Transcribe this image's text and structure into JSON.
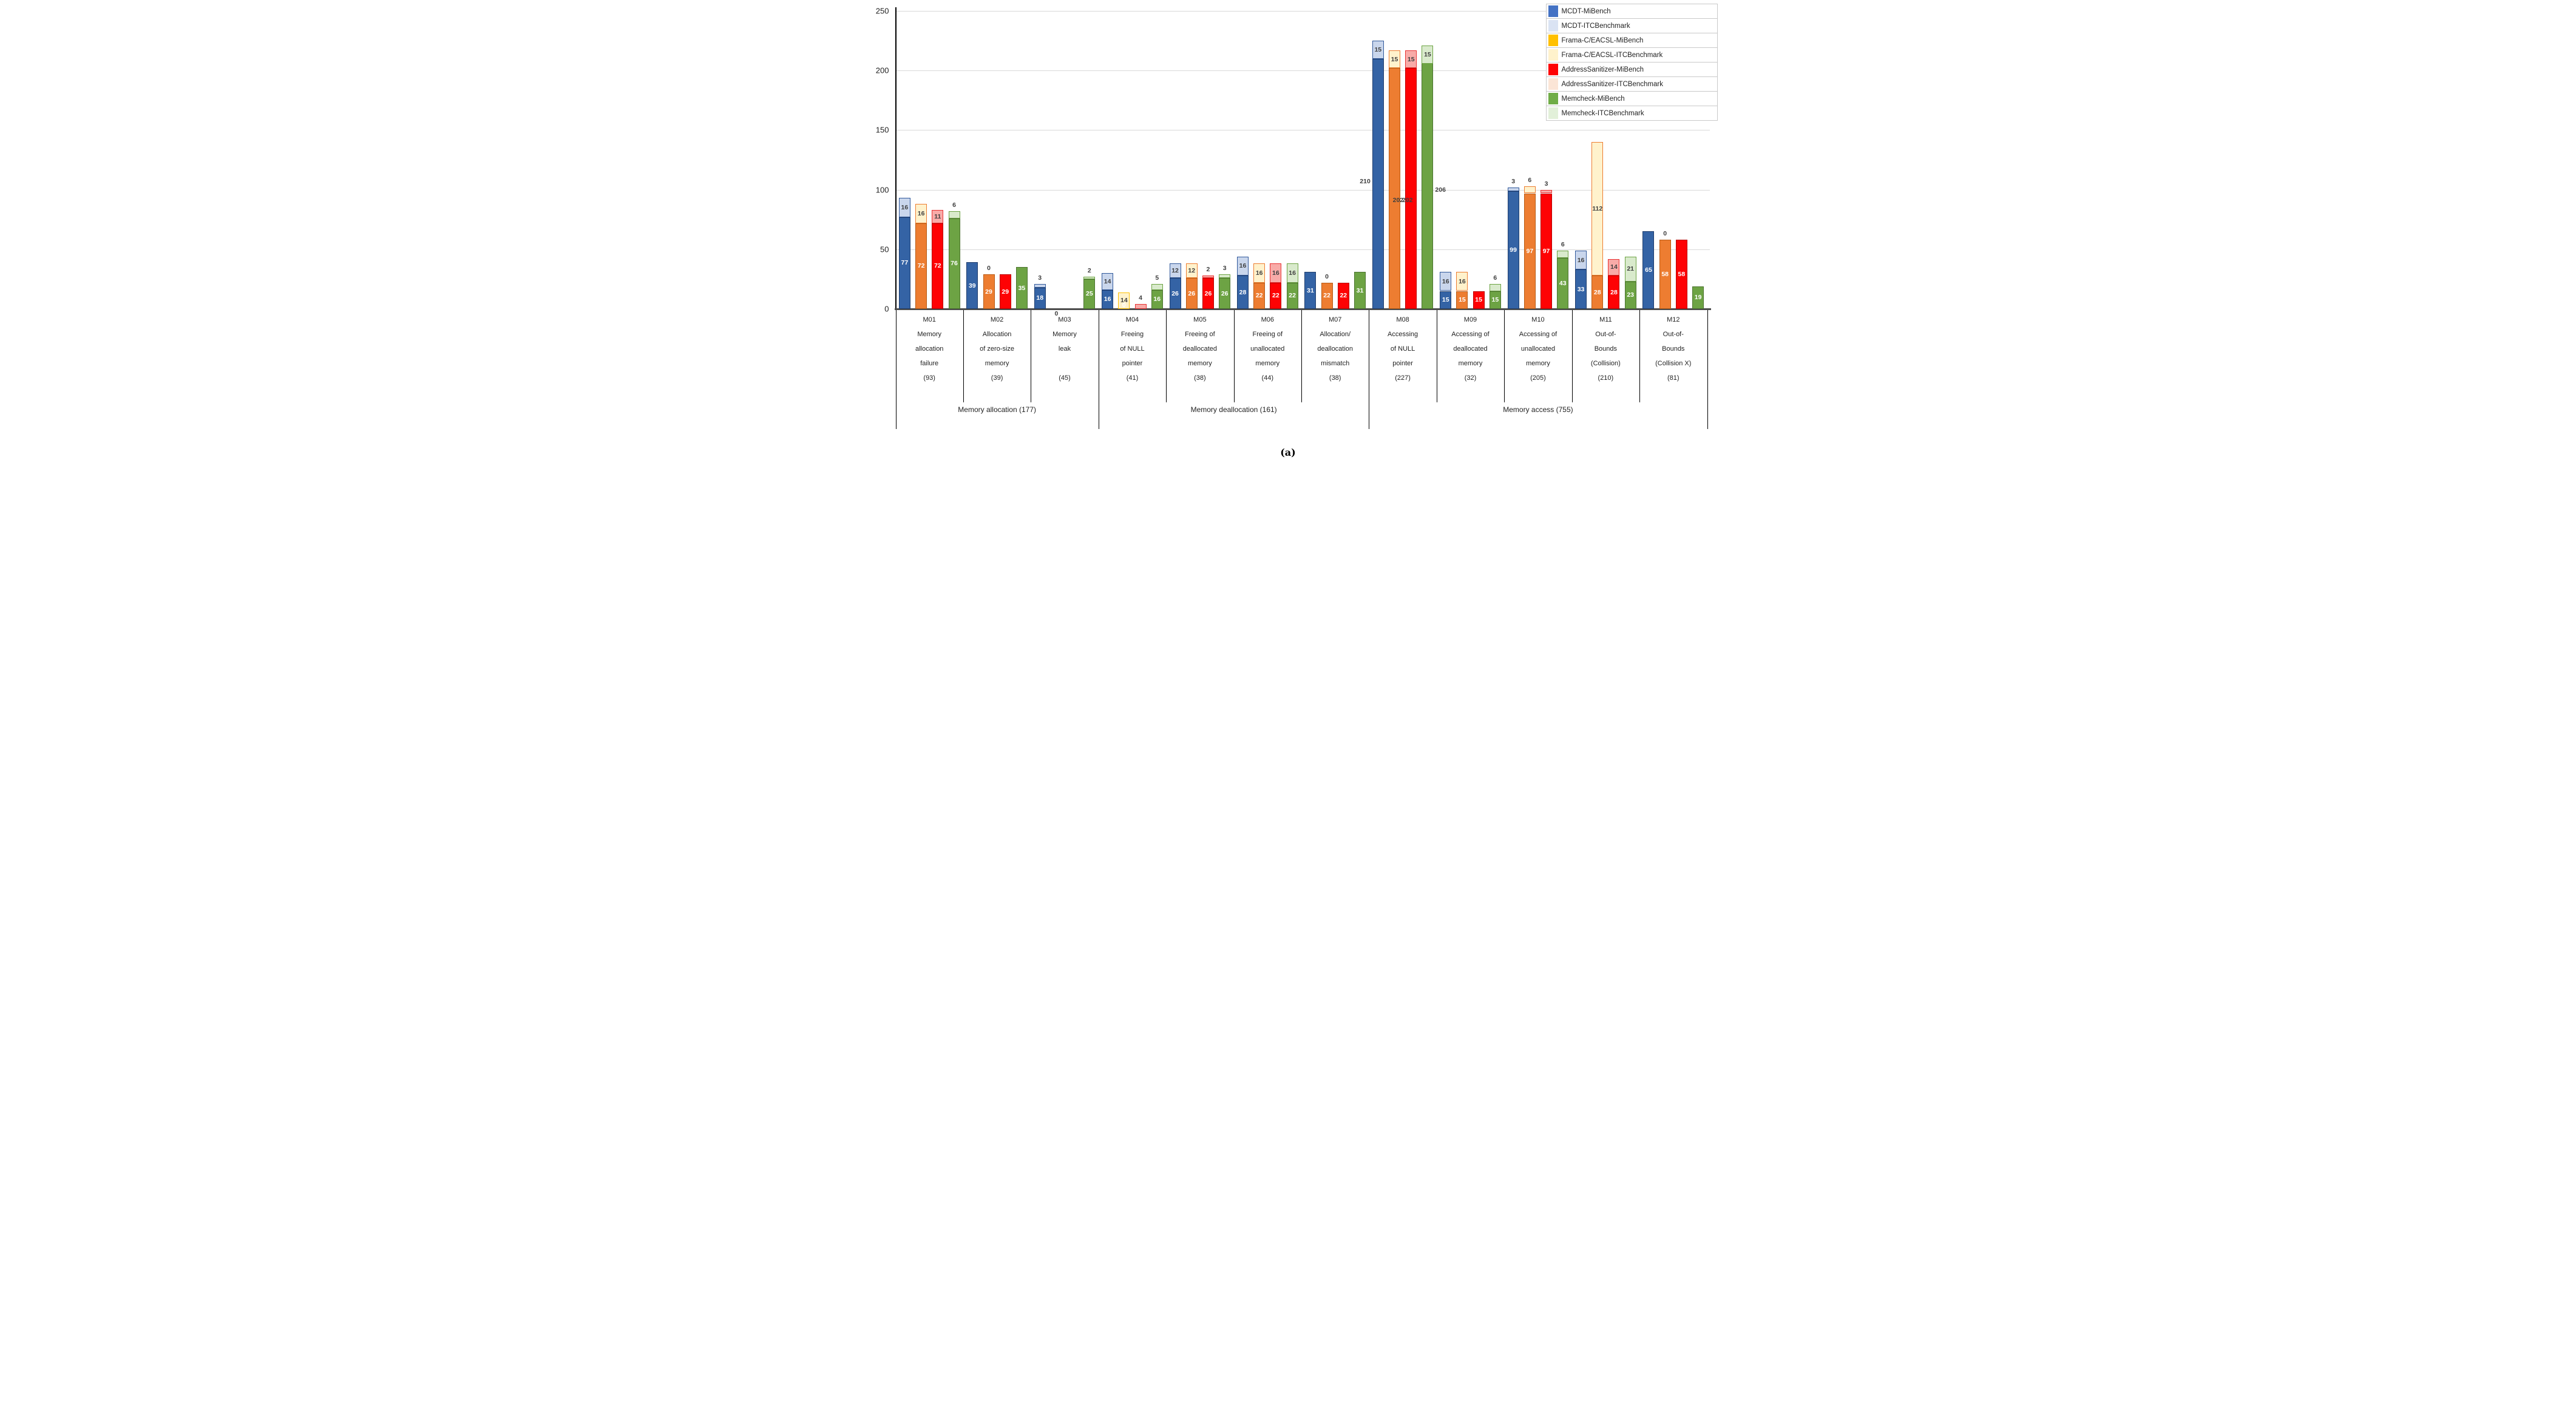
{
  "caption": "(a)",
  "legend": {
    "items": [
      {
        "label": "MCDT-MiBench",
        "color": "#4472C4"
      },
      {
        "label": "MCDT-ITCBenchmark",
        "color": "#DAE3F3"
      },
      {
        "label": "Frama-C/EACSL-MiBench",
        "color": "#FFC000"
      },
      {
        "label": "Frama-C/EACSL-ITCBenchmark",
        "color": "#FFF2CC"
      },
      {
        "label": "AddressSanitizer-MiBench",
        "color": "#FE0204"
      },
      {
        "label": "AddressSanitizer-ITCBenchmark",
        "color": "#FBE5D6"
      },
      {
        "label": "Memcheck-MiBench",
        "color": "#70AD47"
      },
      {
        "label": "Memcheck-ITCBenchmark",
        "color": "#E2F0D9"
      }
    ]
  },
  "chart_data": {
    "type": "bar",
    "stacked": true,
    "title": "",
    "xlabel": "",
    "ylabel": "",
    "ylim": [
      0,
      250
    ],
    "yticks": [
      0,
      50,
      100,
      150,
      200,
      250
    ],
    "grid": true,
    "legend_position": "top-right",
    "categories": [
      {
        "lines": [
          "M01",
          "Memory",
          "allocation",
          "failure",
          "(93)"
        ]
      },
      {
        "lines": [
          "M02",
          "Allocation",
          "of zero-size",
          "memory",
          "(39)"
        ]
      },
      {
        "lines": [
          "M03",
          "Memory",
          "leak",
          "",
          "(45)"
        ]
      },
      {
        "lines": [
          "M04",
          "Freeing",
          "of NULL",
          "pointer",
          "(41)"
        ]
      },
      {
        "lines": [
          "M05",
          "Freeing of",
          "deallocated",
          "memory",
          "(38)"
        ]
      },
      {
        "lines": [
          "M06",
          "Freeing of",
          "unallocated",
          "memory",
          "(44)"
        ]
      },
      {
        "lines": [
          "M07",
          "Allocation/",
          "deallocation",
          "mismatch",
          "(38)"
        ]
      },
      {
        "lines": [
          "M08",
          "Accessing",
          "of NULL",
          "pointer",
          "(227)"
        ]
      },
      {
        "lines": [
          "M09",
          "Accessing of",
          "deallocated",
          "memory",
          "(32)"
        ]
      },
      {
        "lines": [
          "M10",
          "Accessing of",
          "unallocated",
          "memory",
          "(205)"
        ]
      },
      {
        "lines": [
          "M11",
          "Out-of-",
          "Bounds",
          "(Collision)",
          "(210)"
        ]
      },
      {
        "lines": [
          "M12",
          "Out-of-",
          "Bounds",
          "(Collision X)",
          "(81)"
        ]
      }
    ],
    "groups": [
      {
        "label": "Memory allocation (177)",
        "span": [
          0,
          2
        ]
      },
      {
        "label": "Memory deallocation (161)",
        "span": [
          3,
          6
        ]
      },
      {
        "label": "Memory access (755)",
        "span": [
          7,
          11
        ]
      }
    ],
    "series": [
      {
        "name": "MCDT-MiBench",
        "values": [
          77,
          39,
          18,
          16,
          26,
          28,
          31,
          210,
          15,
          99,
          33,
          65
        ]
      },
      {
        "name": "MCDT-ITCBenchmark",
        "values": [
          16,
          0,
          3,
          14,
          12,
          16,
          0,
          15,
          16,
          3,
          16,
          0
        ]
      },
      {
        "name": "Frama-C/EACSL-MiBench",
        "values": [
          72,
          29,
          0,
          0,
          26,
          22,
          22,
          202,
          15,
          97,
          28,
          58
        ]
      },
      {
        "name": "Frama-C/EACSL-ITCBenchmark",
        "values": [
          16,
          0,
          0,
          14,
          12,
          16,
          0,
          15,
          16,
          6,
          112,
          0
        ]
      },
      {
        "name": "AddressSanitizer-MiBench",
        "values": [
          72,
          29,
          0,
          0,
          26,
          22,
          22,
          202,
          15,
          97,
          28,
          58
        ]
      },
      {
        "name": "AddressSanitizer-ITCBenchmark",
        "values": [
          11,
          0,
          0,
          4,
          2,
          16,
          0,
          15,
          0,
          3,
          14,
          0
        ]
      },
      {
        "name": "Memcheck-MiBench",
        "values": [
          76,
          35,
          25,
          16,
          26,
          22,
          31,
          206,
          15,
          43,
          23,
          19
        ]
      },
      {
        "name": "Memcheck-ITCBenchmark",
        "values": [
          6,
          0,
          2,
          5,
          3,
          16,
          0,
          15,
          6,
          6,
          21,
          0
        ]
      }
    ],
    "tool_styles": [
      {
        "solid": "#3463A5",
        "border": "#1F3D6D",
        "light": "#C9D6EC",
        "lightBorder": "#31599B"
      },
      {
        "solid": "#ED7D31",
        "border": "#B85C15",
        "light": "#FFF2CC",
        "lightBorder": "#ED7D31"
      },
      {
        "solid": "#FE0204",
        "border": "#B90000",
        "light": "#F8ABA8",
        "lightBorder": "#E93333"
      },
      {
        "solid": "#6DA344",
        "border": "#4C7430",
        "light": "#D9EACC",
        "lightBorder": "#6DA344"
      }
    ],
    "label_colors": {
      "inside_mibench": "#FFFFFF",
      "inside_itc": "#3F3F3F",
      "outside": "#3F3F3F"
    },
    "bars": [
      [
        {
          "mi": 77,
          "itc": 16,
          "ml": "in",
          "il": "in"
        },
        {
          "mi": 72,
          "itc": 16,
          "ml": "in",
          "il": "in"
        },
        {
          "mi": 72,
          "itc": 11,
          "ml": "in",
          "il": "in"
        },
        {
          "mi": 76,
          "itc": 6,
          "ml": "in",
          "il": "above"
        }
      ],
      [
        {
          "mi": 39,
          "itc": 0,
          "ml": "in",
          "il": "none"
        },
        {
          "mi": 29,
          "itc": 0,
          "ml": "in",
          "il": "above"
        },
        {
          "mi": 29,
          "itc": 0,
          "ml": "in",
          "il": "none"
        },
        {
          "mi": 35,
          "itc": 0,
          "ml": "in",
          "il": "none"
        }
      ],
      [
        {
          "mi": 18,
          "itc": 3,
          "ml": "in",
          "il": "above"
        },
        {
          "mi": 0,
          "itc": 0,
          "ml": "baseline",
          "il": "none"
        },
        {
          "mi": 0,
          "itc": 0,
          "ml": "none",
          "il": "none"
        },
        {
          "mi": 25,
          "itc": 2,
          "ml": "in",
          "il": "above"
        }
      ],
      [
        {
          "mi": 16,
          "itc": 14,
          "ml": "in",
          "il": "in"
        },
        {
          "mi": 0,
          "itc": 14,
          "ml": "in-bottom",
          "il": "in",
          "capB": "#FFC000"
        },
        {
          "mi": 0,
          "itc": 4,
          "ml": "none",
          "il": "above"
        },
        {
          "mi": 16,
          "itc": 5,
          "ml": "in",
          "il": "above"
        }
      ],
      [
        {
          "mi": 26,
          "itc": 12,
          "ml": "in",
          "il": "in"
        },
        {
          "mi": 26,
          "itc": 12,
          "ml": "in",
          "il": "in"
        },
        {
          "mi": 26,
          "itc": 2,
          "ml": "in",
          "il": "above"
        },
        {
          "mi": 26,
          "itc": 3,
          "ml": "in",
          "il": "above"
        }
      ],
      [
        {
          "mi": 28,
          "itc": 16,
          "ml": "in",
          "il": "in"
        },
        {
          "mi": 22,
          "itc": 16,
          "ml": "in",
          "il": "in"
        },
        {
          "mi": 22,
          "itc": 16,
          "ml": "in",
          "il": "in"
        },
        {
          "mi": 22,
          "itc": 16,
          "ml": "in",
          "il": "in"
        }
      ],
      [
        {
          "mi": 31,
          "itc": 0,
          "ml": "in",
          "il": "none"
        },
        {
          "mi": 22,
          "itc": 0,
          "ml": "in",
          "il": "above"
        },
        {
          "mi": 22,
          "itc": 0,
          "ml": "in",
          "il": "none"
        },
        {
          "mi": 31,
          "itc": 0,
          "ml": "in",
          "il": "none"
        }
      ],
      [
        {
          "mi": 210,
          "itc": 15,
          "ml": {
            "pos": "out-left",
            "v": 107
          },
          "il": "in"
        },
        {
          "mi": 202,
          "itc": 15,
          "ml": {
            "pos": "out-right",
            "v": 91
          },
          "il": "in"
        },
        {
          "mi": 202,
          "itc": 15,
          "ml": {
            "pos": "out-left",
            "v": 91
          },
          "il": "in"
        },
        {
          "mi": 206,
          "itc": 15,
          "ml": {
            "pos": "out-right",
            "v": 100
          },
          "il": "in"
        }
      ],
      [
        {
          "mi": 15,
          "itc": 16,
          "ml": "in",
          "il": "in"
        },
        {
          "mi": 15,
          "itc": 16,
          "ml": "in",
          "il": "in"
        },
        {
          "mi": 15,
          "itc": 0,
          "ml": "in",
          "il": "none"
        },
        {
          "mi": 15,
          "itc": 6,
          "ml": "in",
          "il": "above"
        }
      ],
      [
        {
          "mi": 99,
          "itc": 3,
          "ml": "in",
          "il": "above"
        },
        {
          "mi": 97,
          "itc": 6,
          "ml": "in",
          "il": "above"
        },
        {
          "mi": 97,
          "itc": 3,
          "ml": "in",
          "il": "above"
        },
        {
          "mi": 43,
          "itc": 6,
          "ml": "in",
          "il": "above"
        }
      ],
      [
        {
          "mi": 33,
          "itc": 16,
          "ml": "in",
          "il": "in"
        },
        {
          "mi": 28,
          "itc": 112,
          "ml": "in",
          "il": "in"
        },
        {
          "mi": 28,
          "itc": 14,
          "ml": "in",
          "il": "in"
        },
        {
          "mi": 23,
          "itc": 21,
          "ml": "in",
          "il": "in"
        }
      ],
      [
        {
          "mi": 65,
          "itc": 0,
          "ml": "in",
          "il": "none"
        },
        {
          "mi": 58,
          "itc": 0,
          "ml": "in",
          "il": "above"
        },
        {
          "mi": 58,
          "itc": 0,
          "ml": "in",
          "il": "none"
        },
        {
          "mi": 19,
          "itc": 0,
          "ml": "in",
          "il": "none"
        }
      ]
    ]
  }
}
